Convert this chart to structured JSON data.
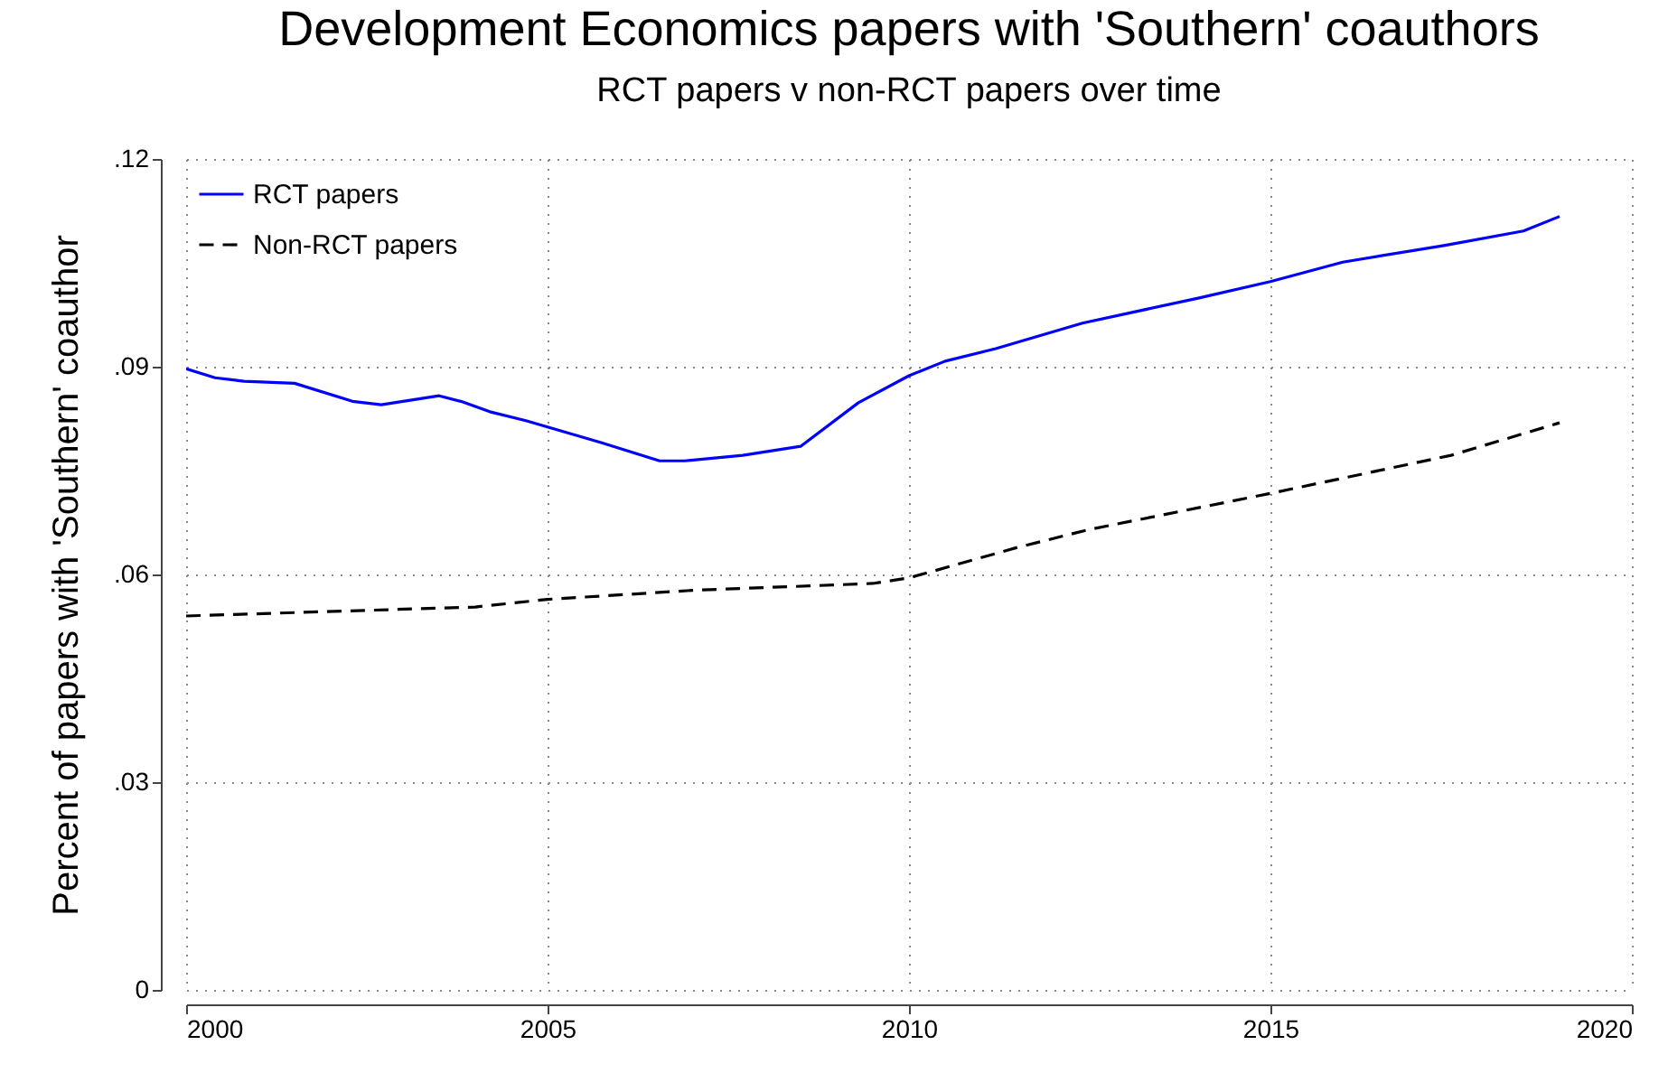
{
  "chart_data": {
    "type": "line",
    "title": "Development Economics papers with 'Southern' coauthors",
    "subtitle": "RCT papers v non-RCT papers over time",
    "ylabel": "Percent of papers with 'Southern' coauthor",
    "xlim": [
      2000,
      2020
    ],
    "xticks": [
      2000,
      2005,
      2010,
      2015,
      2020
    ],
    "ylim": [
      0,
      0.12
    ],
    "yticks": [
      0,
      {
        "value": 0.03,
        "label": ".03"
      },
      {
        "value": 0.06,
        "label": ".06"
      },
      {
        "value": 0.09,
        "label": ".09"
      },
      {
        "value": 0.12,
        "label": ".12"
      }
    ],
    "grid": true,
    "legend": "top left",
    "series": [
      {
        "name": "RCT papers",
        "color": "#0000ff",
        "line_style": "solid",
        "x": [
          2000,
          2000.4,
          2000.8,
          2001.5,
          2002.3,
          2002.7,
          2003.5,
          2003.8,
          2004.2,
          2004.7,
          2005.75,
          2006.55,
          2006.9,
          2007.7,
          2008.5,
          2009.3,
          2010,
          2010.5,
          2011.2,
          2012.4,
          2014,
          2015,
          2016,
          2017.4,
          2018.5,
          2019
        ],
        "values": [
          0.0897,
          0.0884,
          0.0879,
          0.0876,
          0.085,
          0.0845,
          0.0858,
          0.085,
          0.0835,
          0.0822,
          0.079,
          0.0764,
          0.0764,
          0.0772,
          0.0785,
          0.0848,
          0.0887,
          0.0908,
          0.0926,
          0.0963,
          0.0999,
          0.1023,
          0.1051,
          0.1075,
          0.1096,
          0.1117
        ]
      },
      {
        "name": "Non-RCT papers",
        "color": "#000000",
        "line_style": "dashed",
        "x": [
          2000,
          2004,
          2005,
          2007,
          2009.5,
          2010,
          2011.5,
          2012.5,
          2015,
          2017.5,
          2019
        ],
        "values": [
          0.054,
          0.0553,
          0.0564,
          0.0577,
          0.0587,
          0.0595,
          0.0639,
          0.0665,
          0.0717,
          0.0772,
          0.0819
        ]
      }
    ]
  }
}
